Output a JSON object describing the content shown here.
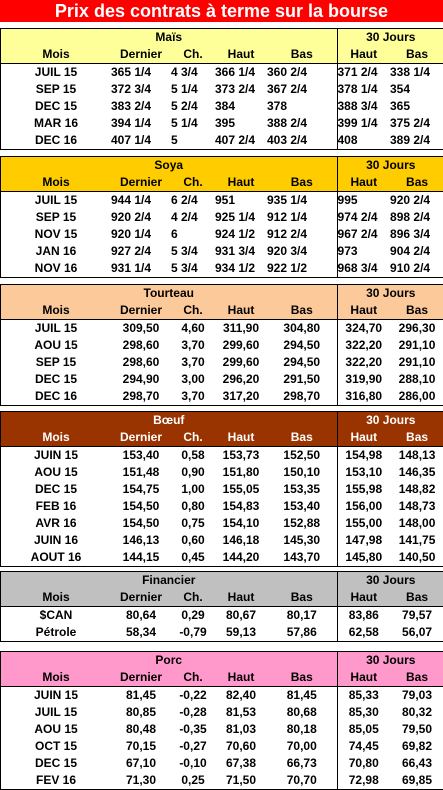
{
  "title": "Prix des contrats à terme sur la bourse",
  "labels": {
    "mois": "Mois",
    "dernier": "Dernier",
    "ch": "Ch.",
    "haut": "Haut",
    "bas": "Bas",
    "jours30": "30 Jours"
  },
  "sections": [
    {
      "name": "Maïs",
      "bg": "#ffff99",
      "fg": "#000000",
      "align": "left",
      "rows": [
        {
          "mois": "JUIL 15",
          "dernier": "365 1/4",
          "ch": "4 3/4",
          "sign": "pos",
          "haut": "366 1/4",
          "bas": "360 2/4",
          "h30": "371 2/4",
          "b30": "338 1/4"
        },
        {
          "mois": "SEP 15",
          "dernier": "372 3/4",
          "ch": "5 1/4",
          "sign": "pos",
          "haut": "373 2/4",
          "bas": "367 2/4",
          "h30": "378 1/4",
          "b30": "354"
        },
        {
          "mois": "DEC 15",
          "dernier": "383 2/4",
          "ch": "5 2/4",
          "sign": "pos",
          "haut": "384",
          "bas": "378",
          "h30": "388 3/4",
          "b30": "365"
        },
        {
          "mois": "MAR 16",
          "dernier": "394 1/4",
          "ch": "5 1/4",
          "sign": "pos",
          "haut": "395",
          "bas": "388 2/4",
          "h30": "399 1/4",
          "b30": "375 2/4"
        },
        {
          "mois": "DEC 16",
          "dernier": "407 1/4",
          "ch": "5",
          "sign": "pos",
          "haut": "407 2/4",
          "bas": "403 2/4",
          "h30": "408",
          "b30": "389 2/4"
        }
      ]
    },
    {
      "name": "Soya",
      "bg": "#ffcc00",
      "fg": "#000000",
      "align": "left",
      "rows": [
        {
          "mois": "JUIL 15",
          "dernier": "944 1/4",
          "ch": "6 2/4",
          "sign": "pos",
          "haut": "951",
          "bas": "935 1/4",
          "h30": "995",
          "b30": "920 2/4"
        },
        {
          "mois": "SEP 15",
          "dernier": "920 2/4",
          "ch": "4 2/4",
          "sign": "pos",
          "haut": "925 1/4",
          "bas": "912 1/4",
          "h30": "974 2/4",
          "b30": "898 2/4"
        },
        {
          "mois": "NOV 15",
          "dernier": "920 1/4",
          "ch": "6",
          "sign": "pos",
          "haut": "924 1/2",
          "bas": "912 2/4",
          "h30": "967 2/4",
          "b30": "896 3/4"
        },
        {
          "mois": "JAN 16",
          "dernier": "927 2/4",
          "ch": "5 3/4",
          "sign": "pos",
          "haut": "931 3/4",
          "bas": "920 3/4",
          "h30": "973",
          "b30": "904 2/4"
        },
        {
          "mois": "NOV 16",
          "dernier": "931 1/4",
          "ch": "5 3/4",
          "sign": "pos",
          "haut": "934 1/2",
          "bas": "922 1/2",
          "h30": "968 3/4",
          "b30": "910 2/4"
        }
      ]
    },
    {
      "name": "Tourteau",
      "bg": "#fcc99a",
      "fg": "#000000",
      "align": "center",
      "rows": [
        {
          "mois": "JUIL 15",
          "dernier": "309,50",
          "ch": "4,60",
          "sign": "pos",
          "haut": "311,90",
          "bas": "304,80",
          "h30": "324,70",
          "b30": "296,30"
        },
        {
          "mois": "AOU 15",
          "dernier": "298,60",
          "ch": "3,70",
          "sign": "pos",
          "haut": "299,60",
          "bas": "294,50",
          "h30": "322,20",
          "b30": "291,10"
        },
        {
          "mois": "SEP 15",
          "dernier": "298,60",
          "ch": "3,70",
          "sign": "pos",
          "haut": "299,60",
          "bas": "294,50",
          "h30": "322,20",
          "b30": "291,10"
        },
        {
          "mois": "DEC 15",
          "dernier": "294,90",
          "ch": "3,00",
          "sign": "pos",
          "haut": "296,20",
          "bas": "291,50",
          "h30": "319,90",
          "b30": "288,10"
        },
        {
          "mois": "DEC 16",
          "dernier": "298,70",
          "ch": "3,70",
          "sign": "pos",
          "haut": "317,20",
          "bas": "298,70",
          "h30": "316,80",
          "b30": "286,00"
        }
      ]
    },
    {
      "name": "Bœuf",
      "bg": "#993300",
      "fg": "#ffffff",
      "align": "center",
      "rows": [
        {
          "mois": "JUIN 15",
          "dernier": "153,40",
          "ch": "0,58",
          "sign": "pos",
          "haut": "153,73",
          "bas": "152,50",
          "h30": "154,98",
          "b30": "148,13"
        },
        {
          "mois": "AOU 15",
          "dernier": "151,48",
          "ch": "0,90",
          "sign": "pos",
          "haut": "151,80",
          "bas": "150,10",
          "h30": "153,10",
          "b30": "146,35"
        },
        {
          "mois": "DEC 15",
          "dernier": "154,75",
          "ch": "1,00",
          "sign": "pos",
          "haut": "155,05",
          "bas": "153,35",
          "h30": "155,98",
          "b30": "148,82"
        },
        {
          "mois": "FEB 16",
          "dernier": "154,50",
          "ch": "0,80",
          "sign": "pos",
          "haut": "154,83",
          "bas": "153,40",
          "h30": "156,00",
          "b30": "148,73"
        },
        {
          "mois": "AVR 16",
          "dernier": "154,50",
          "ch": "0,75",
          "sign": "pos",
          "haut": "154,10",
          "bas": "152,88",
          "h30": "155,00",
          "b30": "148,00"
        },
        {
          "mois": "JUIN 16",
          "dernier": "146,13",
          "ch": "0,60",
          "sign": "pos",
          "haut": "146,18",
          "bas": "145,30",
          "h30": "147,98",
          "b30": "141,75"
        },
        {
          "mois": "AOUT 16",
          "dernier": "144,15",
          "ch": "0,45",
          "sign": "pos",
          "haut": "144,20",
          "bas": "143,70",
          "h30": "145,80",
          "b30": "140,50"
        }
      ]
    },
    {
      "name": "Financier",
      "bg": "#c0c0c0",
      "fg": "#000000",
      "align": "center",
      "rows": [
        {
          "mois": "$CAN",
          "dernier": "80,64",
          "ch": "0,29",
          "sign": "pos",
          "haut": "80,67",
          "bas": "80,17",
          "h30": "83,86",
          "b30": "79,57"
        },
        {
          "mois": "Pétrole",
          "dernier": "58,34",
          "ch": "-0,79",
          "sign": "neg",
          "haut": "59,13",
          "bas": "57,86",
          "h30": "62,58",
          "b30": "56,07"
        }
      ]
    },
    {
      "name": "Porc",
      "bg": "#ff99cc",
      "fg": "#000000",
      "align": "center",
      "rows": [
        {
          "mois": "JUIN 15",
          "dernier": "81,45",
          "ch": "-0,22",
          "sign": "neg",
          "haut": "82,40",
          "bas": "81,45",
          "h30": "85,33",
          "b30": "79,03"
        },
        {
          "mois": "JUIL 15",
          "dernier": "80,85",
          "ch": "-0,28",
          "sign": "neg",
          "haut": "81,53",
          "bas": "80,68",
          "h30": "85,30",
          "b30": "80,32"
        },
        {
          "mois": "AOU 15",
          "dernier": "80,48",
          "ch": "-0,35",
          "sign": "neg",
          "haut": "81,03",
          "bas": "80,18",
          "h30": "85,05",
          "b30": "79,50"
        },
        {
          "mois": "OCT 15",
          "dernier": "70,15",
          "ch": "-0,27",
          "sign": "neg",
          "haut": "70,60",
          "bas": "70,00",
          "h30": "74,45",
          "b30": "69,82"
        },
        {
          "mois": "DEC 15",
          "dernier": "67,10",
          "ch": "-0,10",
          "sign": "neg",
          "haut": "67,38",
          "bas": "66,73",
          "h30": "70,80",
          "b30": "66,43"
        },
        {
          "mois": "FEV 16",
          "dernier": "71,30",
          "ch": "0,25",
          "sign": "pos",
          "haut": "71,50",
          "bas": "70,70",
          "h30": "72,98",
          "b30": "69,85"
        }
      ]
    }
  ]
}
